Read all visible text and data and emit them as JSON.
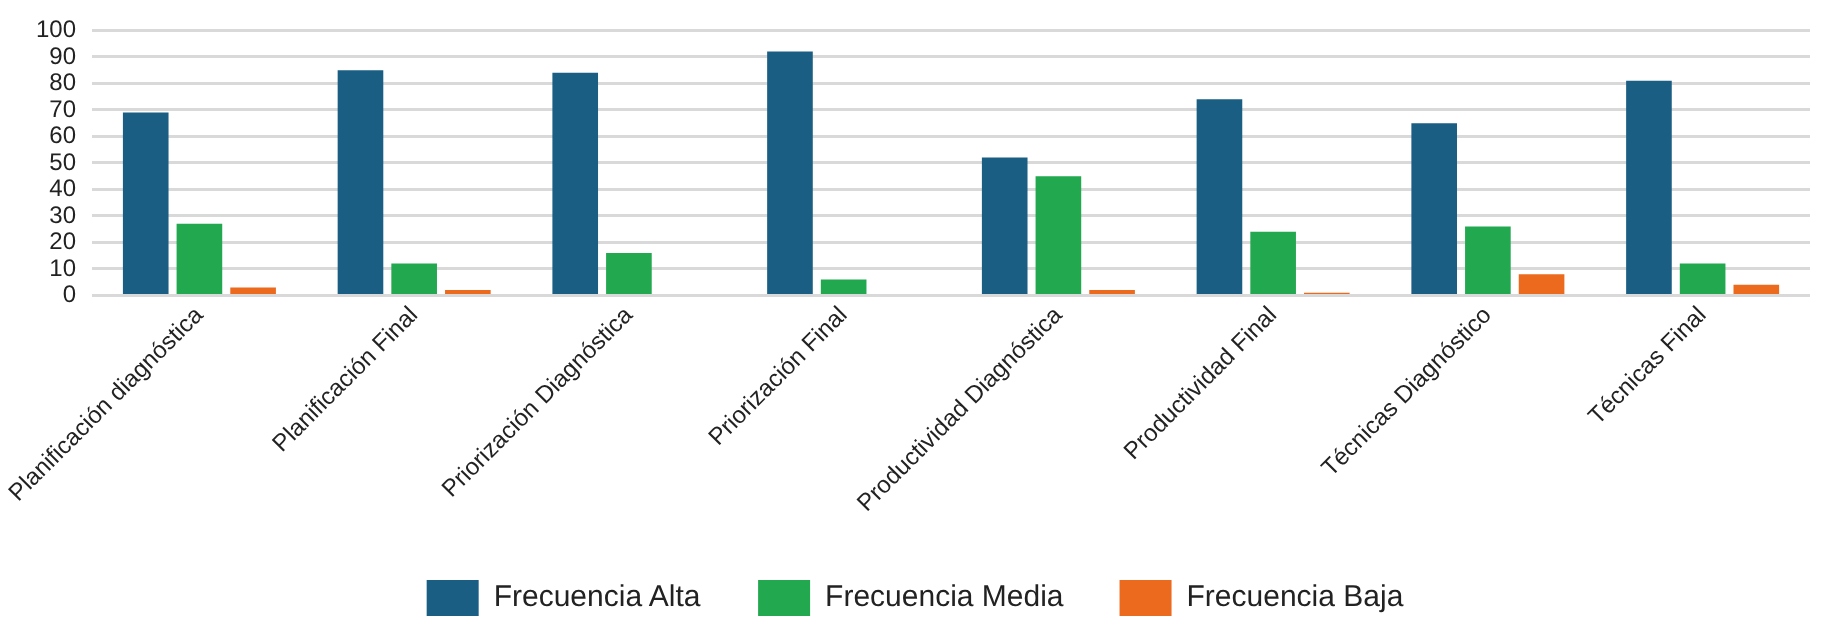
{
  "chart_data": {
    "type": "bar",
    "categories": [
      "Planificación diagnóstica",
      "Planificación Final",
      "Priorización Diagnóstica",
      "Priorización Final",
      "Productividad Diagnóstica",
      "Productividad Final",
      "Técnicas Diagnóstico",
      "Técnicas Final"
    ],
    "series": [
      {
        "name": "Frecuencia Alta",
        "color": "#1a5e84",
        "values": [
          69,
          85,
          84,
          92,
          52,
          74,
          65,
          81
        ]
      },
      {
        "name": "Frecuencia Media",
        "color": "#22a84f",
        "values": [
          27,
          12,
          16,
          6,
          45,
          24,
          26,
          12
        ]
      },
      {
        "name": "Frecuencia Baja",
        "color": "#ec6a1e",
        "values": [
          3,
          2,
          0,
          0,
          2,
          1,
          8,
          4
        ]
      }
    ],
    "ylim": [
      0,
      100
    ],
    "yticks": [
      0,
      10,
      20,
      30,
      40,
      50,
      60,
      70,
      80,
      90,
      100
    ],
    "grid": "y",
    "legend": "bottom"
  }
}
